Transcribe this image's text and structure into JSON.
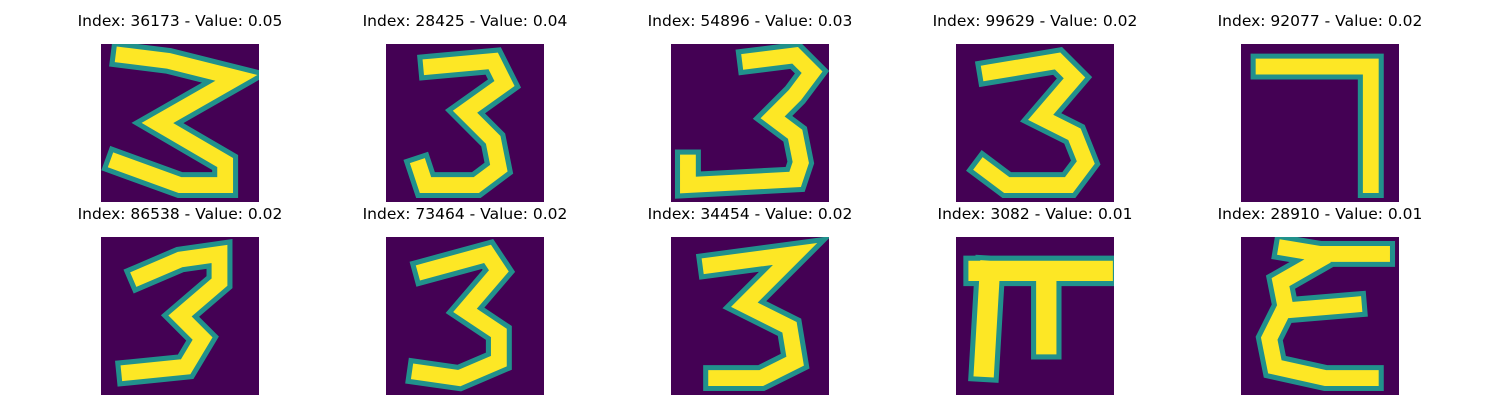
{
  "chart_data": [
    {
      "type": "image",
      "title": "Index: 36173 - Value: 0.05",
      "index": 36173,
      "value": 0.05,
      "digit": "3"
    },
    {
      "type": "image",
      "title": "Index: 28425 - Value: 0.04",
      "index": 28425,
      "value": 0.04,
      "digit": "3"
    },
    {
      "type": "image",
      "title": "Index: 54896 - Value: 0.03",
      "index": 54896,
      "value": 0.03,
      "digit": "3"
    },
    {
      "type": "image",
      "title": "Index: 99629 - Value: 0.02",
      "index": 99629,
      "value": 0.02,
      "digit": "3"
    },
    {
      "type": "image",
      "title": "Index: 92077 - Value: 0.02",
      "index": 92077,
      "value": 0.02,
      "digit": "7"
    },
    {
      "type": "image",
      "title": "Index: 86538 - Value: 0.02",
      "index": 86538,
      "value": 0.02,
      "digit": "3"
    },
    {
      "type": "image",
      "title": "Index: 73464 - Value: 0.02",
      "index": 73464,
      "value": 0.02,
      "digit": "3"
    },
    {
      "type": "image",
      "title": "Index: 34454 - Value: 0.02",
      "index": 34454,
      "value": 0.02,
      "digit": "3"
    },
    {
      "type": "image",
      "title": "Index: 3082 - Value: 0.01",
      "index": 3082,
      "value": 0.01,
      "digit": "π"
    },
    {
      "type": "image",
      "title": "Index: 28910 - Value: 0.01",
      "index": 28910,
      "value": 0.01,
      "digit": "ε"
    }
  ],
  "colors": {
    "background": "#440154",
    "stroke": "#fde725",
    "edge": "#21918c"
  }
}
